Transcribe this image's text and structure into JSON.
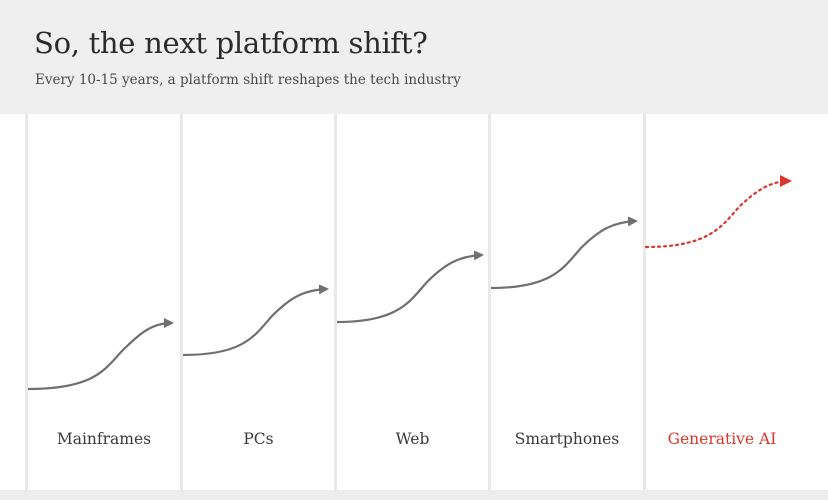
{
  "header": {
    "title": "So, the next platform shift?",
    "subtitle": "Every 10-15 years, a platform shift reshapes the tech industry"
  },
  "shifts": [
    {
      "label": "Mainframes",
      "highlight": false
    },
    {
      "label": "PCs",
      "highlight": false
    },
    {
      "label": "Web",
      "highlight": false
    },
    {
      "label": "Smartphones",
      "highlight": false
    },
    {
      "label": "Generative AI",
      "highlight": true
    }
  ],
  "colors": {
    "curve": "#707070",
    "highlight": "#d9372a",
    "panel": "#ffffff",
    "background": "#efefef"
  }
}
